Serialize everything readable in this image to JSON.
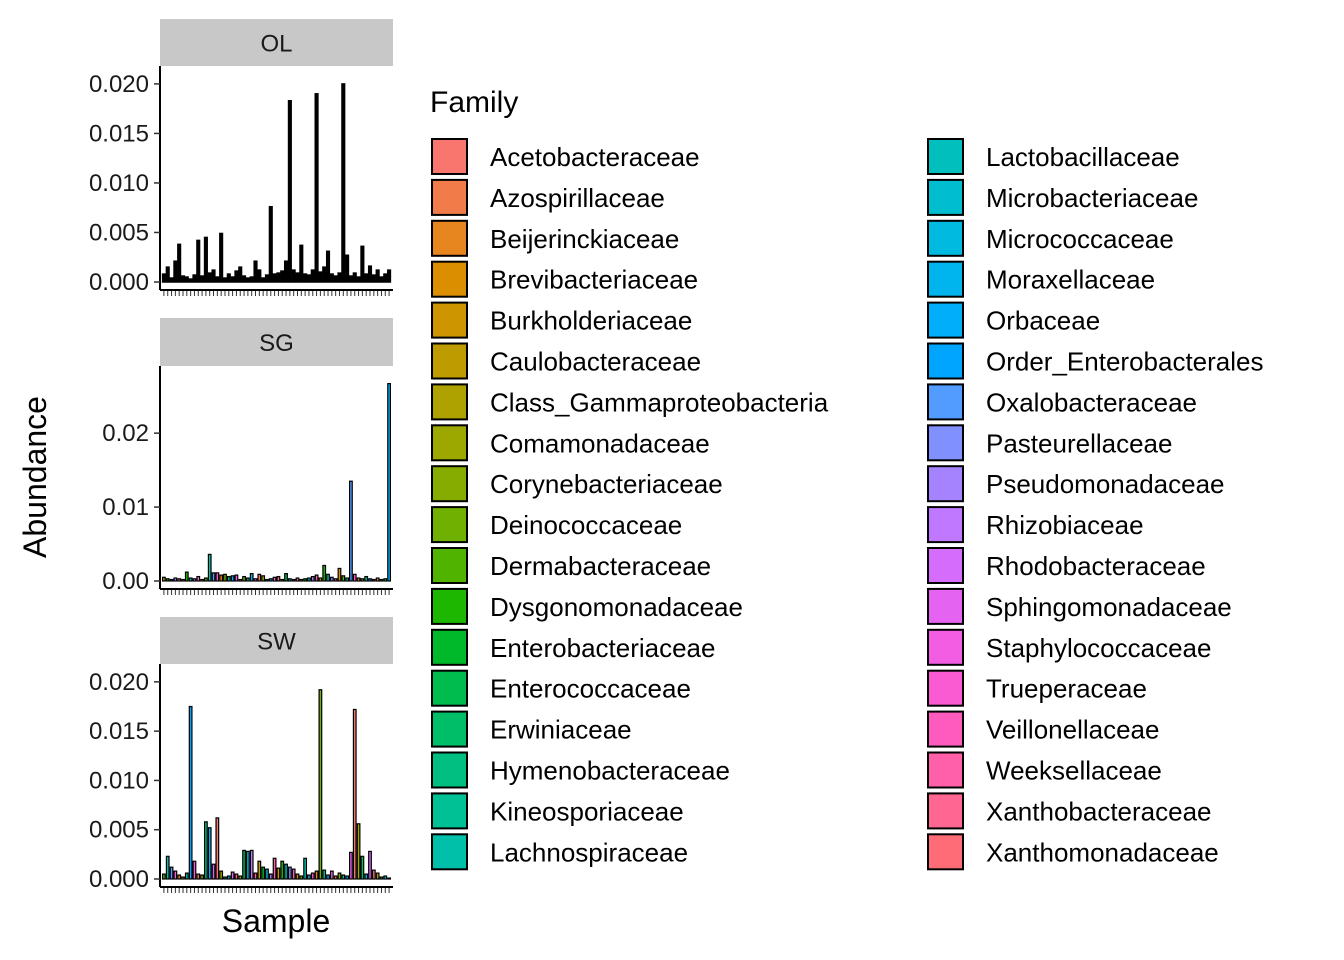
{
  "chart_data": {
    "type": "bar",
    "stacked": true,
    "xlabel": "Sample",
    "ylabel": "Abundance",
    "legend": {
      "title": "Family",
      "position": "right",
      "columns": 2,
      "items": [
        {
          "label": "Acetobacteraceae",
          "color": "#F8766D"
        },
        {
          "label": "Azospirillaceae",
          "color": "#F17C4A"
        },
        {
          "label": "Beijerinckiaceae",
          "color": "#E7851E"
        },
        {
          "label": "Brevibacteriaceae",
          "color": "#DB8E00"
        },
        {
          "label": "Burkholderiaceae",
          "color": "#CD9600"
        },
        {
          "label": "Caulobacteraceae",
          "color": "#BE9C00"
        },
        {
          "label": "Class_Gammaproteobacteria",
          "color": "#AEA200"
        },
        {
          "label": "Comamonadaceae",
          "color": "#9CA700"
        },
        {
          "label": "Corynebacteriaceae",
          "color": "#87AC00"
        },
        {
          "label": "Deinococcaceae",
          "color": "#6FB000"
        },
        {
          "label": "Dermabacteraceae",
          "color": "#4FB300"
        },
        {
          "label": "Dysgonomonadaceae",
          "color": "#1DB700"
        },
        {
          "label": "Enterobacteriaceae",
          "color": "#00B92A"
        },
        {
          "label": "Enterococcaceae",
          "color": "#00BB4E"
        },
        {
          "label": "Erwiniaceae",
          "color": "#00BD68"
        },
        {
          "label": "Hymenobacteraceae",
          "color": "#00BF80"
        },
        {
          "label": "Kineosporiaceae",
          "color": "#00C096"
        },
        {
          "label": "Lachnospiraceae",
          "color": "#00C0AA"
        },
        {
          "label": "Lactobacillaceae",
          "color": "#00BFBD"
        },
        {
          "label": "Microbacteriaceae",
          "color": "#00BDCF"
        },
        {
          "label": "Micrococcaceae",
          "color": "#00BADF"
        },
        {
          "label": "Moraxellaceae",
          "color": "#00B5EE"
        },
        {
          "label": "Orbaceae",
          "color": "#00AEFA"
        },
        {
          "label": "Order_Enterobacterales",
          "color": "#00A5FF"
        },
        {
          "label": "Oxalobacteraceae",
          "color": "#529BFF"
        },
        {
          "label": "Pasteurellaceae",
          "color": "#8190FF"
        },
        {
          "label": "Pseudomonadaceae",
          "color": "#A583FF"
        },
        {
          "label": "Rhizobiaceae",
          "color": "#BF78FF"
        },
        {
          "label": "Rhodobacteraceae",
          "color": "#D56CFB"
        },
        {
          "label": "Sphingomonadaceae",
          "color": "#E563F1"
        },
        {
          "label": "Staphylococcaceae",
          "color": "#F25DE3"
        },
        {
          "label": "Trueperaceae",
          "color": "#FA5AD2"
        },
        {
          "label": "Veillonellaceae",
          "color": "#FF5BBF"
        },
        {
          "label": "Weeksellaceae",
          "color": "#FF60A9"
        },
        {
          "label": "Xanthobacteraceae",
          "color": "#FF6691"
        },
        {
          "label": "Xanthomonadaceae",
          "color": "#FE6D77"
        }
      ]
    },
    "panels": [
      {
        "facet": "OL",
        "ylim": [
          0,
          0.021
        ],
        "yticks": [
          0.0,
          0.005,
          0.01,
          0.015,
          0.02
        ],
        "ytick_labels": [
          "0.000",
          "0.005",
          "0.010",
          "0.015",
          "0.020"
        ],
        "n_samples": 60,
        "values": [
          0.0008,
          0.0015,
          0.0004,
          0.0021,
          0.0038,
          0.0006,
          0.0005,
          0.0003,
          0.0007,
          0.0042,
          0.0006,
          0.0045,
          0.0009,
          0.0012,
          0.0005,
          0.0049,
          0.0004,
          0.0008,
          0.0005,
          0.0011,
          0.0015,
          0.0006,
          0.0004,
          0.0005,
          0.0021,
          0.0012,
          0.0004,
          0.0007,
          0.0076,
          0.0008,
          0.0009,
          0.0011,
          0.0021,
          0.0183,
          0.0012,
          0.0009,
          0.0037,
          0.0008,
          0.0007,
          0.0012,
          0.019,
          0.001,
          0.0015,
          0.0031,
          0.0008,
          0.0006,
          0.0009,
          0.02,
          0.0027,
          0.0006,
          0.0009,
          0.0005,
          0.0036,
          0.0008,
          0.0016,
          0.0007,
          0.0012,
          0.0005,
          0.0008,
          0.0012
        ],
        "series_colors_sample": []
      },
      {
        "facet": "SG",
        "ylim": [
          0,
          0.028
        ],
        "yticks": [
          0.0,
          0.01,
          0.02
        ],
        "ytick_labels": [
          "0.00",
          "0.01",
          "0.02"
        ],
        "n_samples": 60,
        "values": [
          0.0005,
          0.0003,
          0.0002,
          0.0004,
          0.0003,
          0.0002,
          0.0012,
          0.0004,
          0.0003,
          0.0006,
          0.0002,
          0.0004,
          0.0036,
          0.0011,
          0.0011,
          0.0008,
          0.0009,
          0.0006,
          0.0007,
          0.0008,
          0.0002,
          0.0006,
          0.0004,
          0.001,
          0.0003,
          0.0009,
          0.0007,
          0.0002,
          0.0003,
          0.0005,
          0.0006,
          0.0002,
          0.001,
          0.0003,
          0.0002,
          0.0004,
          0.0002,
          0.0003,
          0.0004,
          0.0006,
          0.0008,
          0.0004,
          0.0021,
          0.0009,
          0.0005,
          0.0003,
          0.0017,
          0.0007,
          0.0004,
          0.0135,
          0.0009,
          0.0004,
          0.0003,
          0.0006,
          0.0003,
          0.0002,
          0.0004,
          0.0002,
          0.0003,
          0.0267
        ]
      },
      {
        "facet": "SW",
        "ylim": [
          0,
          0.021
        ],
        "yticks": [
          0.0,
          0.005,
          0.01,
          0.015,
          0.02
        ],
        "ytick_labels": [
          "0.000",
          "0.005",
          "0.010",
          "0.015",
          "0.020"
        ],
        "n_samples": 60,
        "values": [
          0.0005,
          0.0023,
          0.0012,
          0.0008,
          0.0004,
          0.0002,
          0.0006,
          0.0175,
          0.0018,
          0.0005,
          0.0004,
          0.0058,
          0.0052,
          0.0015,
          0.0062,
          0.0008,
          0.0002,
          0.0003,
          0.0007,
          0.0005,
          0.0003,
          0.0029,
          0.0028,
          0.0029,
          0.0006,
          0.0018,
          0.0012,
          0.001,
          0.0005,
          0.0021,
          0.0011,
          0.0018,
          0.0015,
          0.0012,
          0.001,
          0.0005,
          0.0003,
          0.0021,
          0.0004,
          0.0006,
          0.0008,
          0.0192,
          0.0009,
          0.0004,
          0.0008,
          0.0003,
          0.0006,
          0.0004,
          0.0003,
          0.0027,
          0.0172,
          0.0056,
          0.0023,
          0.0005,
          0.0028,
          0.0009,
          0.0006,
          0.0002,
          0.0003,
          0.0001
        ]
      }
    ]
  }
}
